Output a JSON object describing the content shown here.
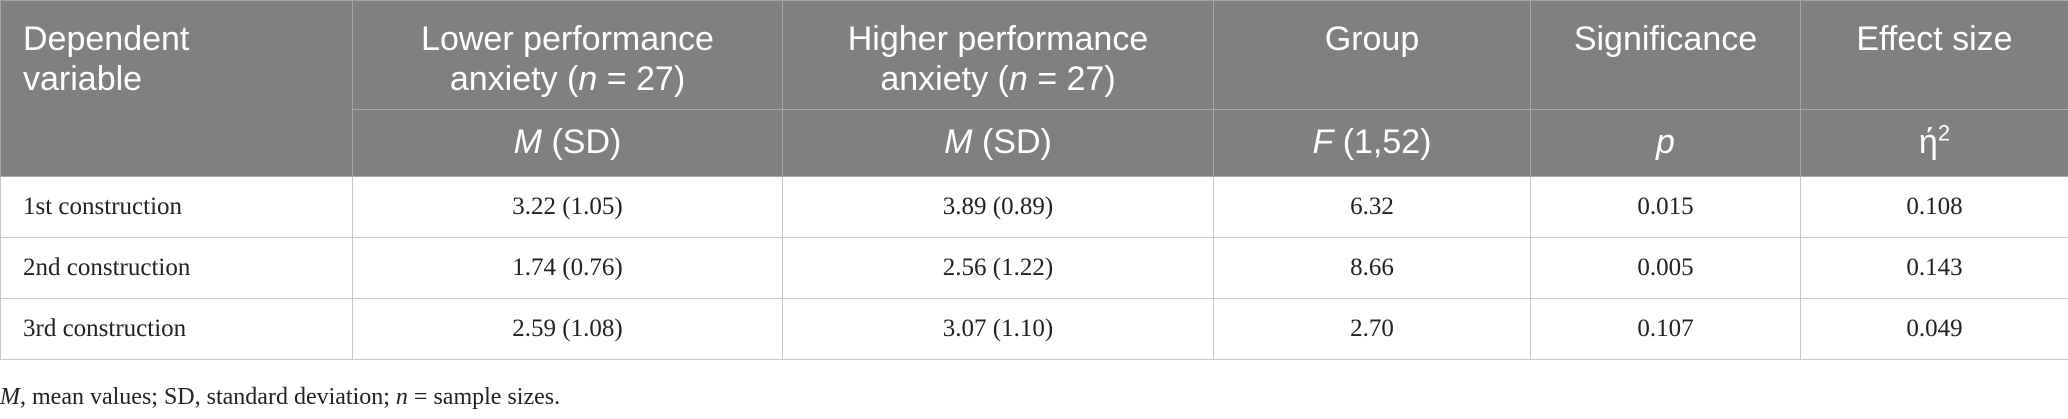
{
  "table": {
    "header_top": [
      [
        {
          "text": "Dependent variable"
        }
      ],
      [
        {
          "text": "Lower performance anxiety ("
        },
        {
          "text": "n",
          "italic": true
        },
        {
          "text": " = 27)"
        }
      ],
      [
        {
          "text": "Higher performance anxiety ("
        },
        {
          "text": "n",
          "italic": true
        },
        {
          "text": " = 27)"
        }
      ],
      [
        {
          "text": "Group"
        }
      ],
      [
        {
          "text": "Significance"
        }
      ],
      [
        {
          "text": "Effect size"
        }
      ]
    ],
    "header_sub": [
      [
        {
          "text": "M",
          "italic": true
        },
        {
          "text": " (SD)"
        }
      ],
      [
        {
          "text": "M",
          "italic": true
        },
        {
          "text": " (SD)"
        }
      ],
      [
        {
          "text": "F",
          "italic": true
        },
        {
          "text": " (1,52)"
        }
      ],
      [
        {
          "text": "p",
          "italic": true
        }
      ],
      [
        {
          "text": "ή"
        },
        {
          "text": "2",
          "sup": true
        }
      ]
    ],
    "rows": [
      [
        "1st construction",
        "3.22 (1.05)",
        "3.89 (0.89)",
        "6.32",
        "0.015",
        "0.108"
      ],
      [
        "2nd construction",
        "1.74 (0.76)",
        "2.56 (1.22)",
        "8.66",
        "0.005",
        "0.143"
      ],
      [
        "3rd construction",
        "2.59 (1.08)",
        "3.07 (1.10)",
        "2.70",
        "0.107",
        "0.049"
      ]
    ],
    "footnote": [
      {
        "text": "M",
        "italic": true
      },
      {
        "text": ", mean values; SD, standard deviation; "
      },
      {
        "text": "n",
        "italic": true
      },
      {
        "text": " = sample sizes."
      }
    ]
  }
}
